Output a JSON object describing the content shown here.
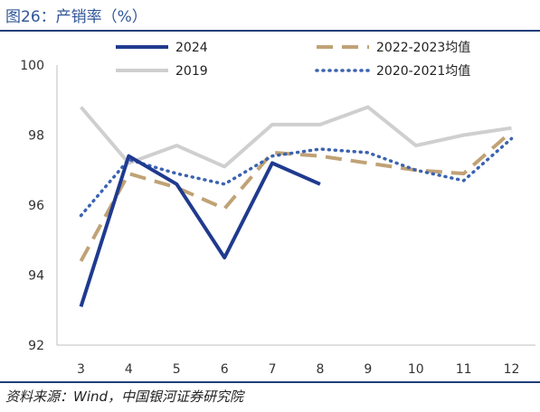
{
  "header": {
    "title": "图26：产销率（%）"
  },
  "footer": {
    "source": "资料来源：Wind，中国银河证券研究院"
  },
  "chart_data": {
    "type": "line",
    "title": "图26：产销率（%）",
    "xlabel": "",
    "ylabel": "",
    "categories": [
      "3",
      "4",
      "5",
      "6",
      "7",
      "8",
      "9",
      "10",
      "11",
      "12"
    ],
    "ylim": [
      92,
      100
    ],
    "yticks": [
      92,
      94,
      96,
      98,
      100
    ],
    "grid": false,
    "legend_position": "top",
    "series": [
      {
        "name": "2024",
        "color": "#1f3a8f",
        "style": "solid",
        "values": [
          93.1,
          97.4,
          96.6,
          94.5,
          97.2,
          96.6,
          null,
          null,
          null,
          null
        ]
      },
      {
        "name": "2022-2023均值",
        "color": "#c0a276",
        "style": "dashed",
        "values": [
          94.4,
          96.9,
          96.5,
          95.9,
          97.5,
          97.4,
          97.2,
          97.0,
          96.9,
          98.1
        ]
      },
      {
        "name": "2019",
        "color": "#cfcfcf",
        "style": "solid",
        "values": [
          98.8,
          97.2,
          97.7,
          97.1,
          98.3,
          98.3,
          98.8,
          97.7,
          98.0,
          98.2
        ]
      },
      {
        "name": "2020-2021均值",
        "color": "#3b63b0",
        "style": "dotted",
        "values": [
          95.7,
          97.3,
          96.9,
          96.6,
          97.4,
          97.6,
          97.5,
          97.0,
          96.7,
          97.9
        ]
      }
    ]
  }
}
